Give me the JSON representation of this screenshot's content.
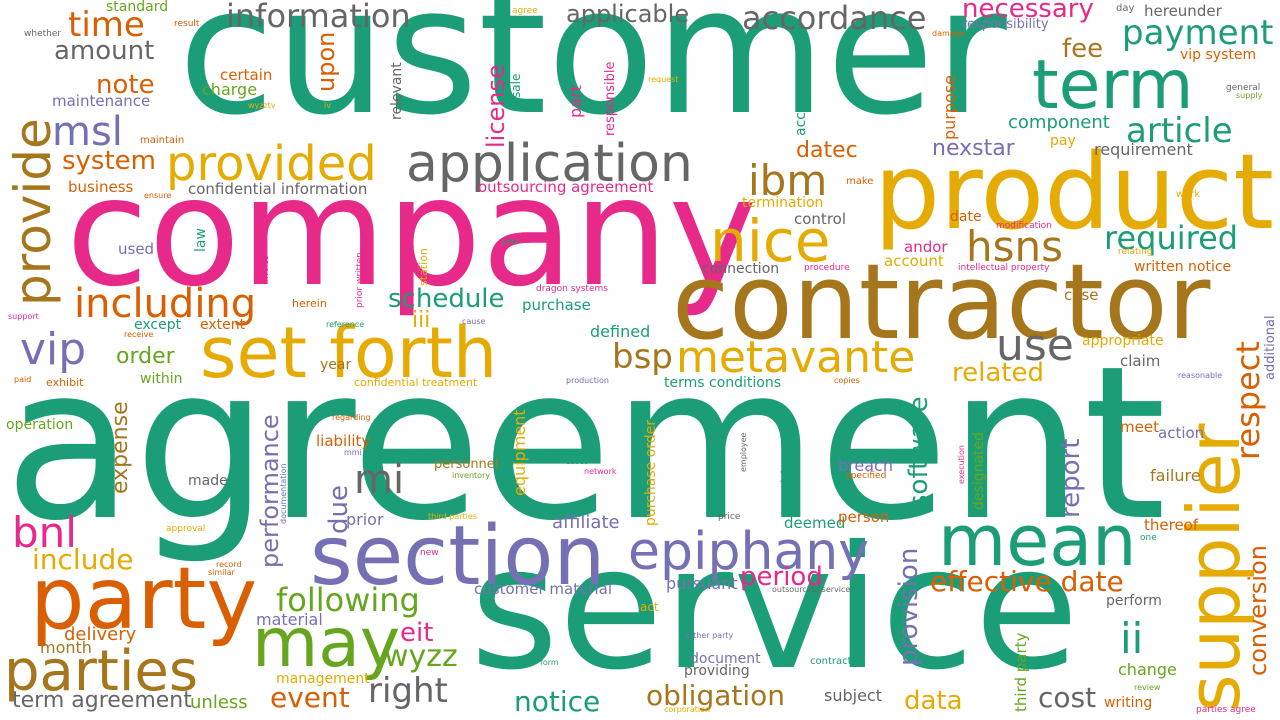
{
  "palette": {
    "green": "#1b9e77",
    "pink": "#e7298a",
    "gold": "#e6ab02",
    "brown": "#a6761d",
    "orange": "#d95f02",
    "purple": "#7570b3",
    "lime": "#66a61e",
    "gray": "#666666"
  },
  "words": [
    "customer",
    "agreement",
    "company",
    "service",
    "contractor",
    "product",
    "supplier",
    "set forth",
    "party",
    "section",
    "application",
    "provided",
    "provide",
    "term",
    "payment",
    "article",
    "nice",
    "hsns",
    "ibm",
    "metavante",
    "epiphany",
    "mean",
    "parties",
    "may",
    "information",
    "accordance",
    "applicable",
    "necessary",
    "time",
    "amount",
    "msl",
    "including",
    "vip",
    "bnl",
    "note",
    "system",
    "use",
    "required",
    "bsp",
    "related",
    "respect",
    "conversion",
    "following",
    "wyzz",
    "right",
    "notice",
    "obligation",
    "event",
    "cost",
    "ii",
    "mi",
    "include",
    "effective date",
    "period",
    "data",
    "schedule",
    "iii",
    "eit",
    "report",
    "software",
    "provision",
    "performance",
    "upon",
    "license",
    "datec",
    "nexstar",
    "fee",
    "component",
    "written notice",
    "expense",
    "due",
    "order",
    "delivery",
    "month",
    "term agreement",
    "unless",
    "management",
    "material",
    "prior",
    "affiliate",
    "pursuant",
    "customer material",
    "document",
    "providing",
    "subject",
    "perform",
    "change",
    "failure",
    "breach",
    "action",
    "meet",
    "thereof",
    "claim",
    "appropriate",
    "case",
    "account",
    "andor",
    "defined",
    "purchase",
    "except",
    "extent",
    "within",
    "year",
    "liability",
    "personnel",
    "equipment",
    "purchase order",
    "terms conditions",
    "termination",
    "control",
    "connection",
    "date",
    "requirement",
    "purpose",
    "access",
    "pay",
    "certain",
    "charge",
    "maintenance",
    "business",
    "confidential information",
    "outsourcing agreement",
    "used",
    "law",
    "herein",
    "hereunder",
    "responsibility",
    "standard",
    "made",
    "operation",
    "exhibit",
    "deemed",
    "person",
    "problem",
    "third party",
    "designated",
    "vip system",
    "writing",
    "additional",
    "dragon systems",
    "part",
    "responsible",
    "relevant",
    "sale",
    "confidential treatment",
    "intellectual property",
    "procedure",
    "relating",
    "modification",
    "work",
    "make",
    "general",
    "supply",
    "day",
    "agree",
    "damage",
    "request",
    "whether",
    "result",
    "maintain",
    "ensure",
    "wyzztv",
    "iv",
    "invoice",
    "station",
    "prior written",
    "plan",
    "cause",
    "reference",
    "support",
    "receive",
    "paid",
    "regarding",
    "mmi",
    "documentation",
    "inventory",
    "network",
    "asset",
    "employee",
    "execution",
    "specified",
    "approval",
    "record",
    "similar",
    "new",
    "third parties",
    "price",
    "form",
    "contract",
    "either party",
    "act",
    "outsourcing service",
    "one",
    "review",
    "corporation",
    "parties agree",
    "production",
    "copies",
    "reasonable"
  ]
}
